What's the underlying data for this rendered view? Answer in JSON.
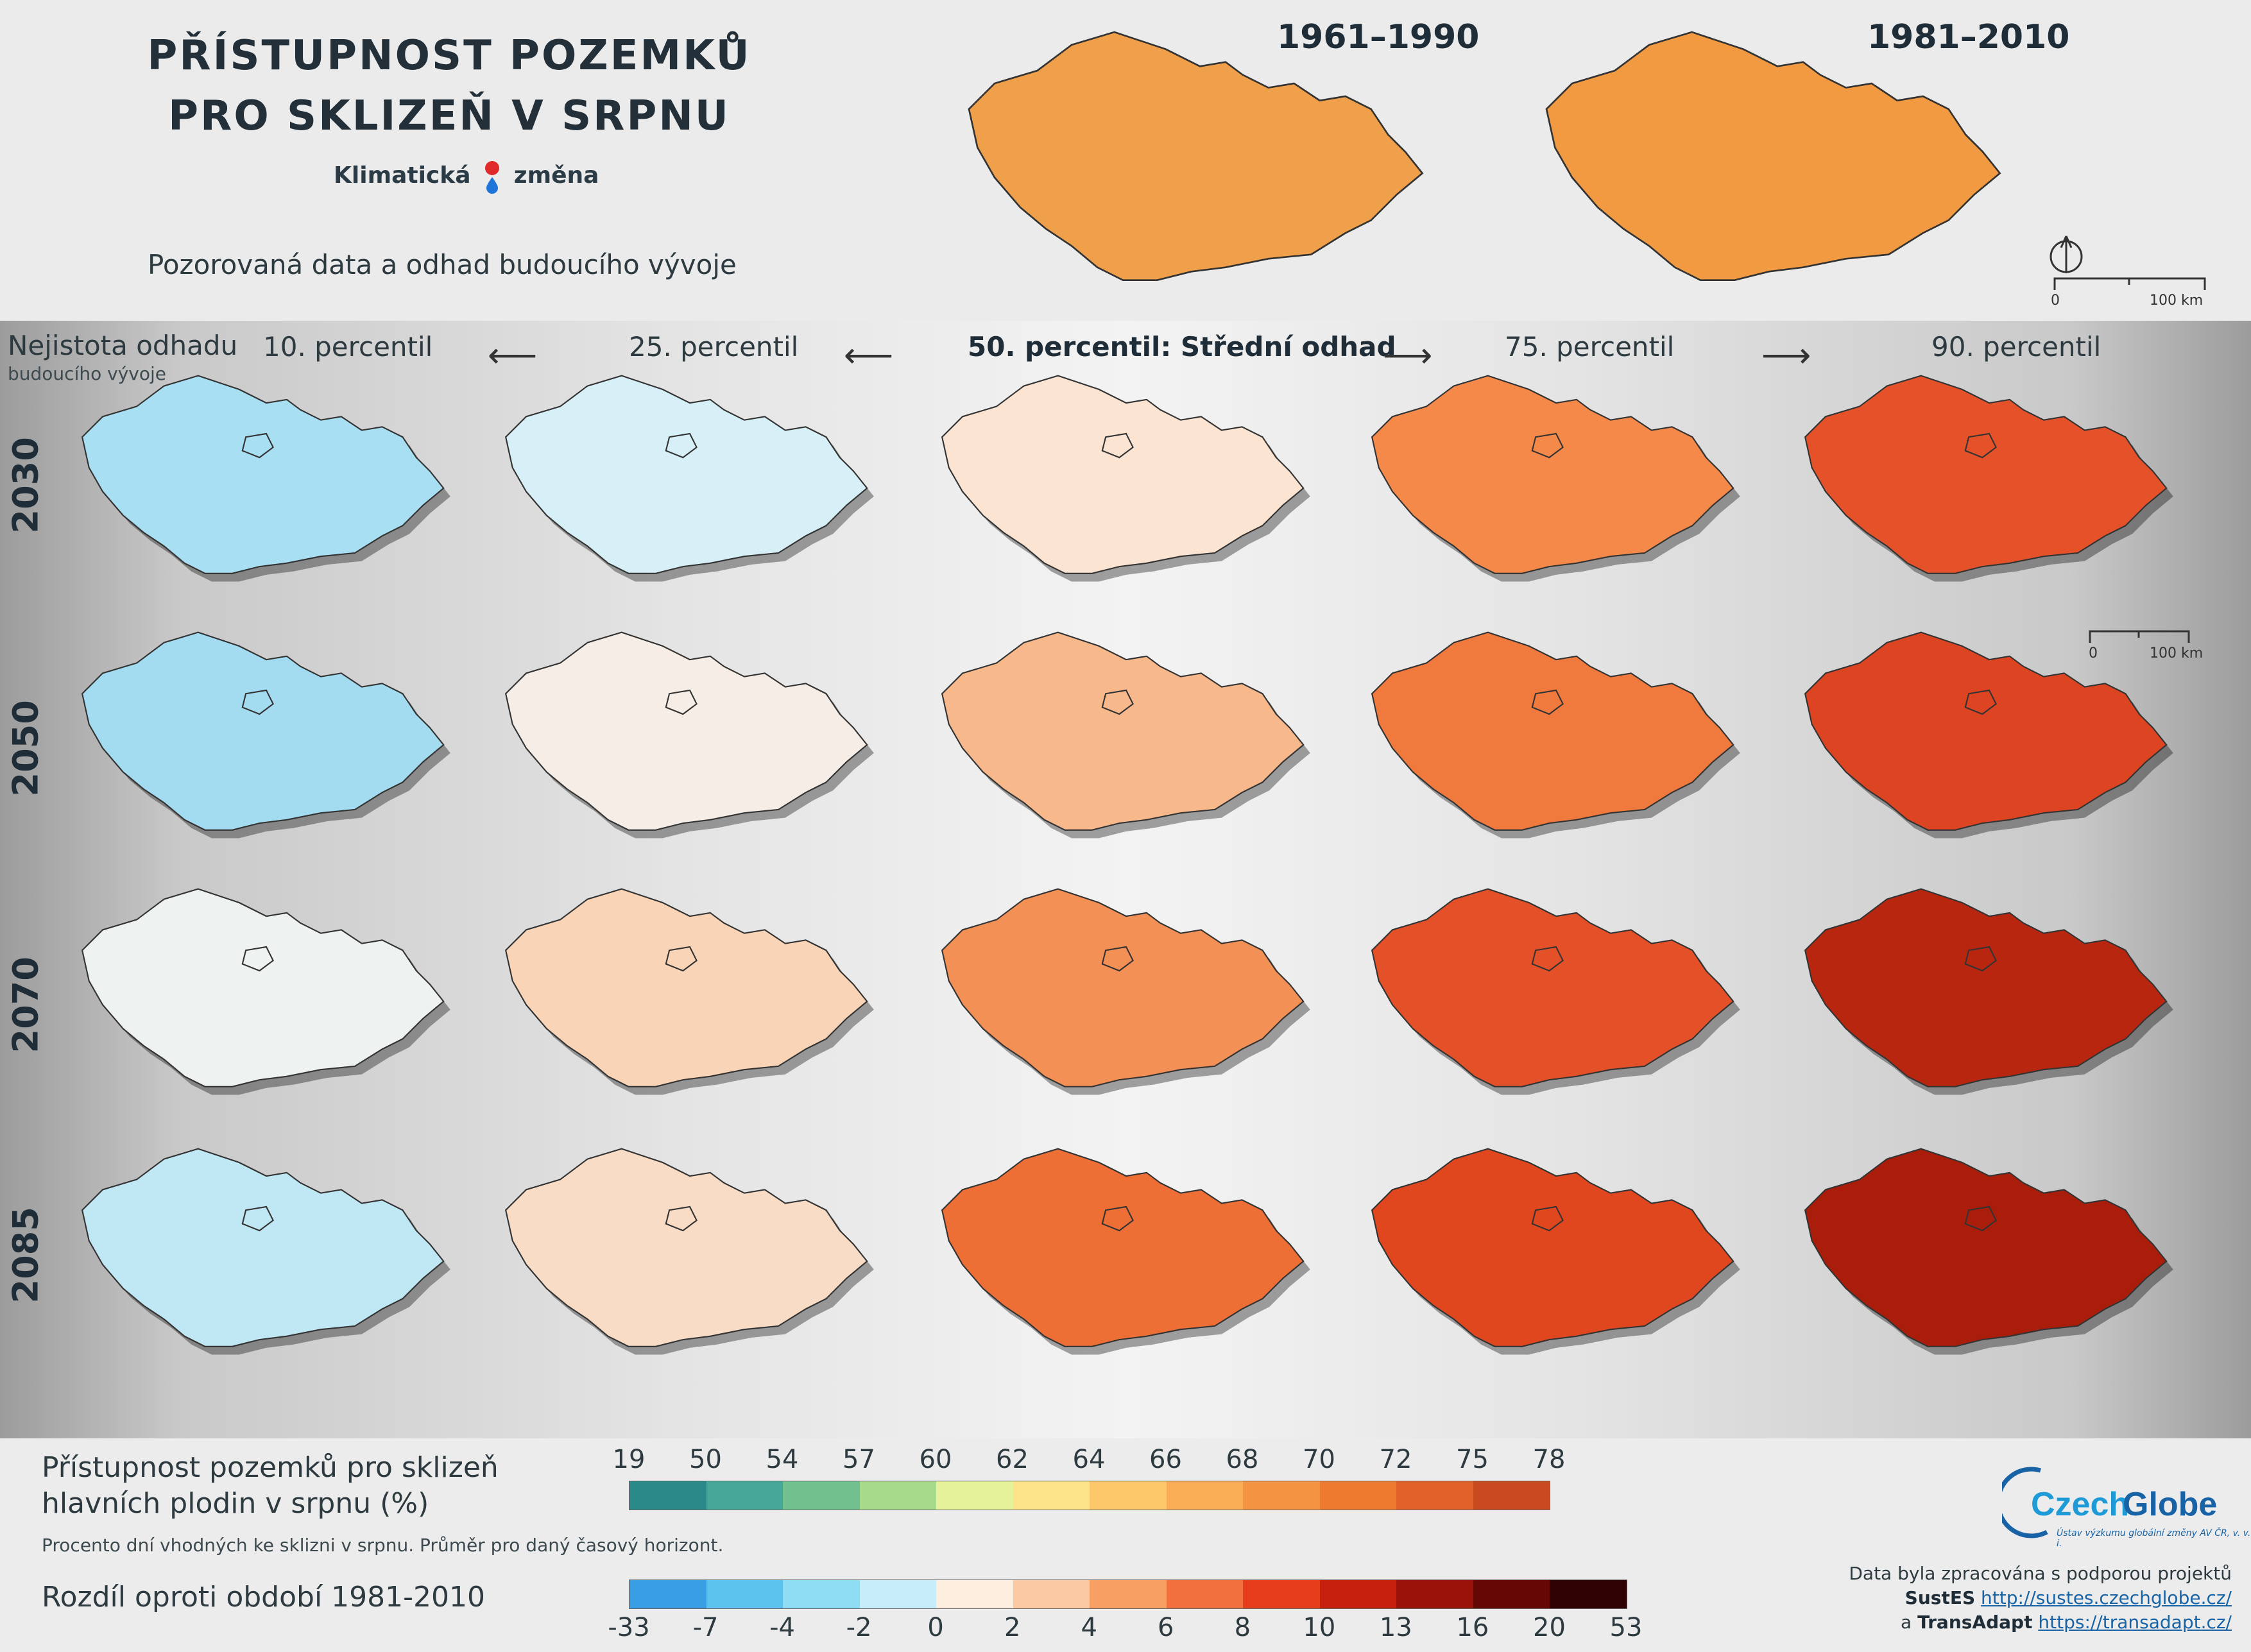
{
  "header": {
    "title_line1": "PŘÍSTUPNOST POZEMKŮ",
    "title_line2": "PRO SKLIZEŇ V SRPNU",
    "brand_part1": "Klimatická",
    "brand_part2": "změna",
    "subtitle": "Pozorovaná data a odhad budoucího vývoje",
    "periods": [
      "1961–1990",
      "1981–2010"
    ]
  },
  "scale_bar": {
    "start": "0",
    "end": "100 km"
  },
  "uncertainty": {
    "label": "Nejistota odhadu",
    "sublabel": "budoucího vývoje"
  },
  "columns": [
    "10. percentil",
    "25. percentil",
    "50. percentil: Střední odhad",
    "75. percentil",
    "90. percentil"
  ],
  "years": [
    "2030",
    "2050",
    "2070",
    "2085"
  ],
  "legend_absolute": {
    "title_line1": "Přístupnost pozemků pro sklizeň",
    "title_line2": "hlavních plodin v srpnu (%)",
    "note": "Procento dní vhodných ke sklizni v srpnu. Průměr pro daný časový horizont.",
    "ticks": [
      "19",
      "50",
      "54",
      "57",
      "60",
      "62",
      "64",
      "66",
      "68",
      "70",
      "72",
      "75",
      "78"
    ],
    "colors": [
      "#2a8a8a",
      "#46a898",
      "#72c08e",
      "#a8da8c",
      "#e6f29a",
      "#fde38a",
      "#fcc86a",
      "#f9ae55",
      "#f59440",
      "#ee7a2e",
      "#e2602a",
      "#c94a1e"
    ]
  },
  "legend_difference": {
    "title": "Rozdíl oproti období 1981-2010",
    "ticks": [
      "-33",
      "-7",
      "-4",
      "-2",
      "0",
      "2",
      "4",
      "6",
      "8",
      "10",
      "13",
      "16",
      "20",
      "53"
    ],
    "colors": [
      "#3a9ee4",
      "#5cc3ef",
      "#8fdcf5",
      "#c7eef8",
      "#fdeee0",
      "#fbcaa2",
      "#f8a064",
      "#f2703c",
      "#e63d1c",
      "#c8200e",
      "#9a1208",
      "#650803",
      "#2e0200"
    ]
  },
  "logo": {
    "part1": "Czech",
    "part2": "Globe",
    "tagline": "Ústav výzkumu globální změny AV ČR, v. v. i."
  },
  "credits": {
    "line1": "Data byla zpracována s podporou projektů",
    "project1": "SustES",
    "url1": "http://sustes.czechglobe.cz/",
    "and": "a",
    "project2": "TransAdapt",
    "url2": "https://transadapt.cz/"
  },
  "map_fills": {
    "observed": [
      "#f0a04a",
      "#f29a42"
    ],
    "grid": [
      [
        "#a9dff2",
        "#d7f0f8",
        "#fbe4d2",
        "#f5894a",
        "#e5522a"
      ],
      [
        "#a3dcf1",
        "#f6ede6",
        "#f7b88c",
        "#f07a3e",
        "#dc4422"
      ],
      [
        "#eef2f0",
        "#f9d4b6",
        "#f39055",
        "#e45128",
        "#b8260f"
      ],
      [
        "#c0e7f4",
        "#f8dcc6",
        "#ee6f36",
        "#e0471f",
        "#a91d0a"
      ]
    ]
  }
}
